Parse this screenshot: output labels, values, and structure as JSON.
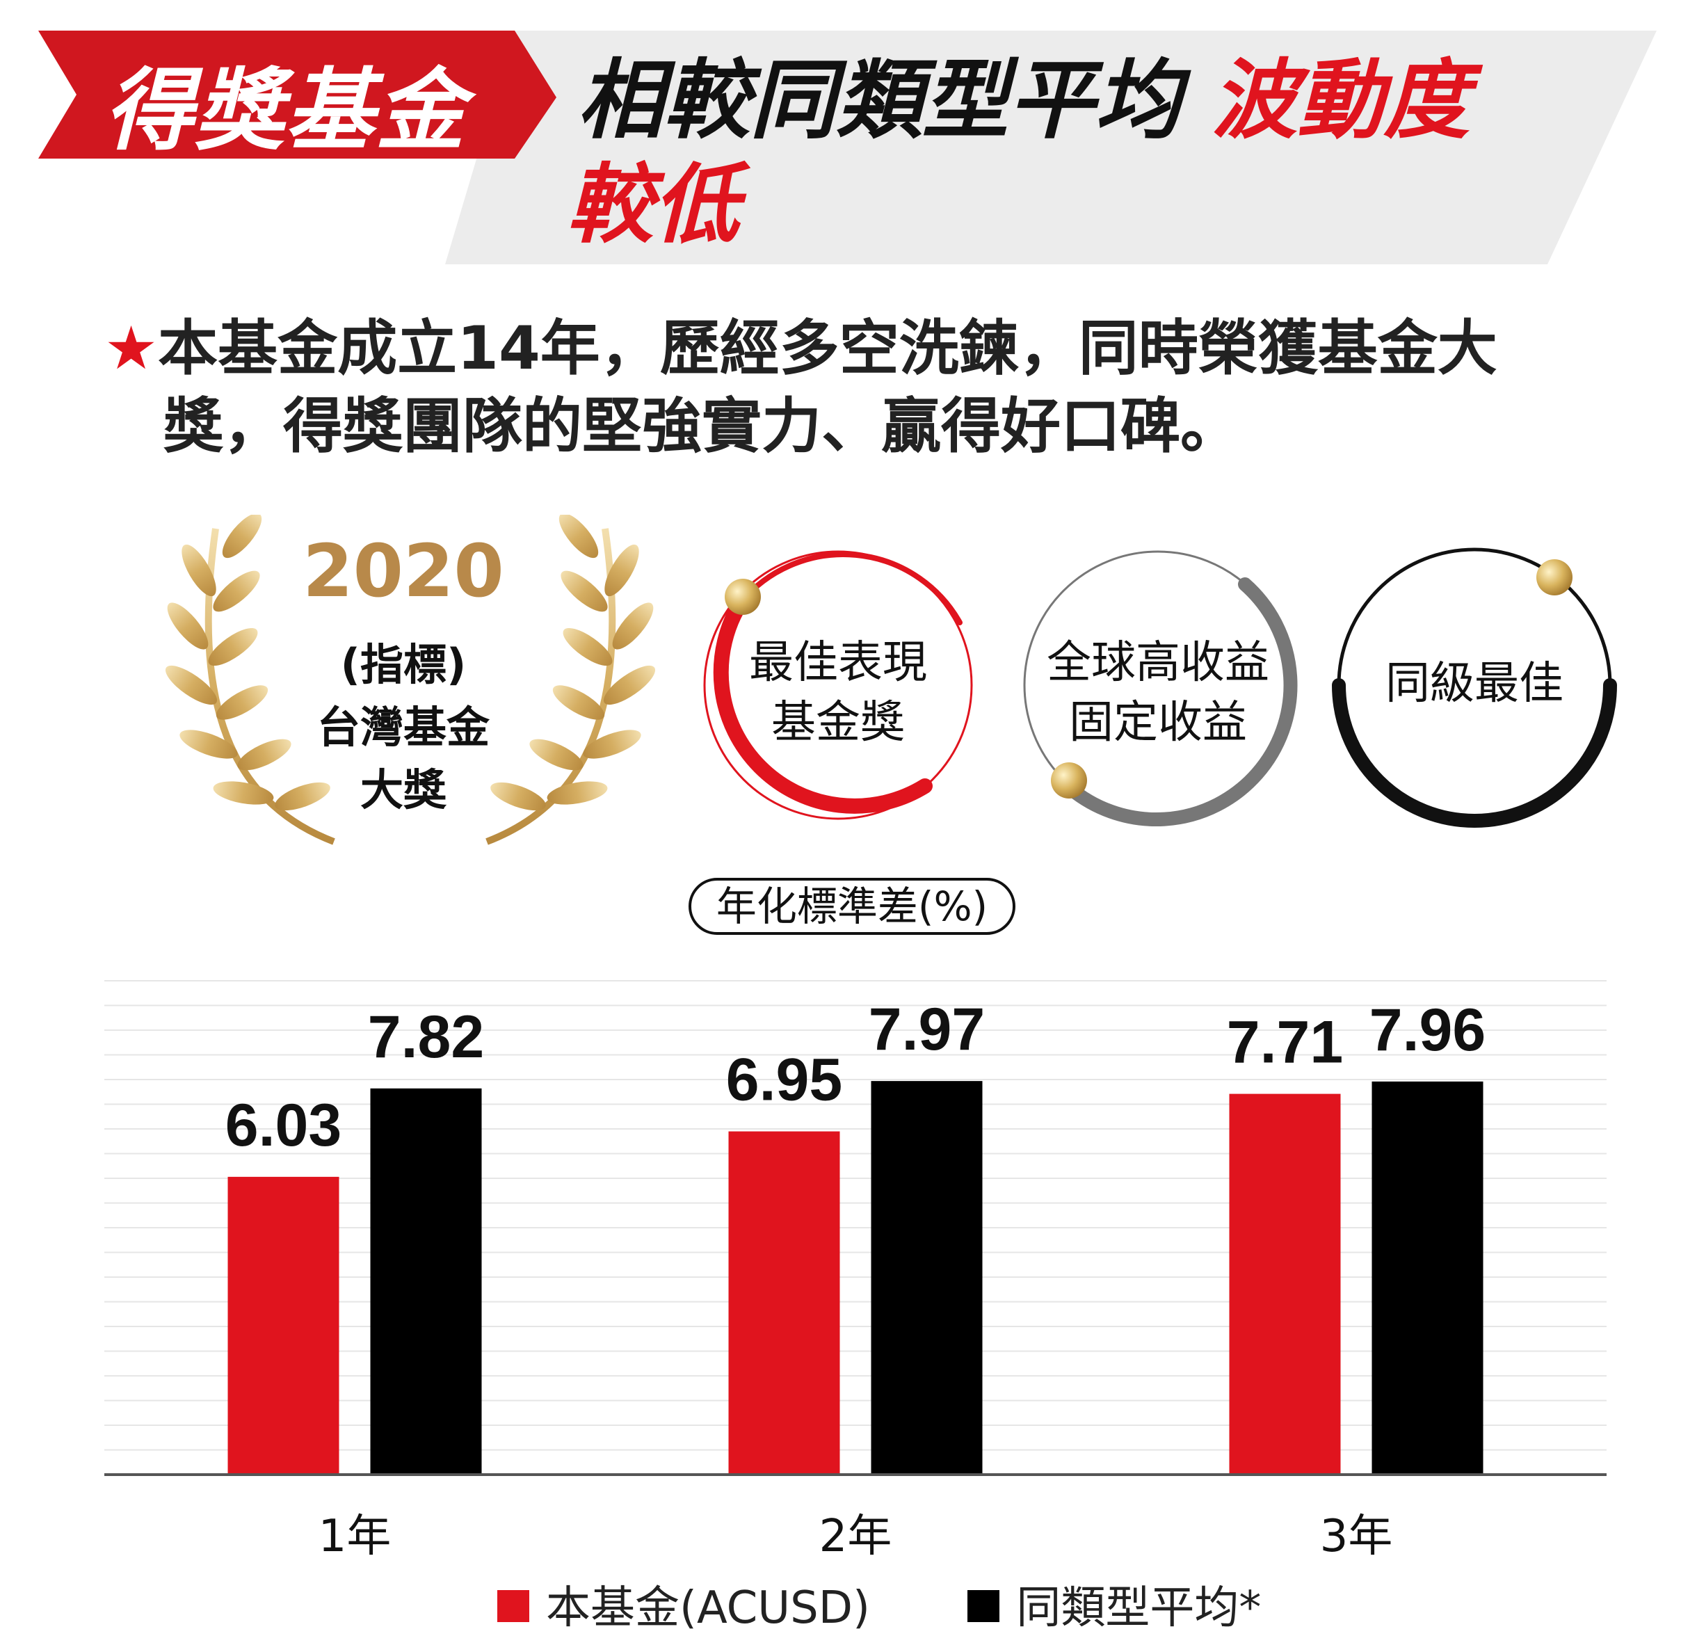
{
  "header": {
    "badge": "得獎基金",
    "headline_main": "相較同類型平均",
    "headline_red": "波動度",
    "headline_red2": "較低"
  },
  "intro": {
    "star": "★",
    "line1": "本基金成立14年，歷經多空洗鍊，同時榮獲基金大",
    "line2": "獎，得獎團隊的堅強實力、贏得好口碑。"
  },
  "award": {
    "year": "2020",
    "line1": "(指標)",
    "line2": "台灣基金",
    "line3": "大獎"
  },
  "circles": [
    {
      "line1": "最佳表現",
      "line2": "基金獎",
      "ring_color": "#e0141e"
    },
    {
      "line1": "全球高收益",
      "line2": "固定收益",
      "ring_color": "#777777"
    },
    {
      "line1": "同級最佳",
      "line2": "",
      "ring_color": "#111111"
    }
  ],
  "colors": {
    "accent_red": "#e0141e",
    "black": "#000000",
    "gold": "#c9a259",
    "header_gray": "#ececec"
  },
  "chart_data": {
    "type": "bar",
    "title": "年化標準差(%)",
    "categories": [
      "1年",
      "2年",
      "3年"
    ],
    "series": [
      {
        "name": "本基金(ACUSD)",
        "values": [
          6.03,
          6.95,
          7.71
        ],
        "color": "#e0141e"
      },
      {
        "name": "同類型平均*",
        "values": [
          7.82,
          7.97,
          7.96
        ],
        "color": "#000000"
      }
    ],
    "value_labels": [
      [
        "6.03",
        "6.95",
        "7.71"
      ],
      [
        "7.82",
        "7.97",
        "7.96"
      ]
    ],
    "ylim": [
      0,
      10
    ],
    "grid": true,
    "legend_position": "bottom"
  }
}
